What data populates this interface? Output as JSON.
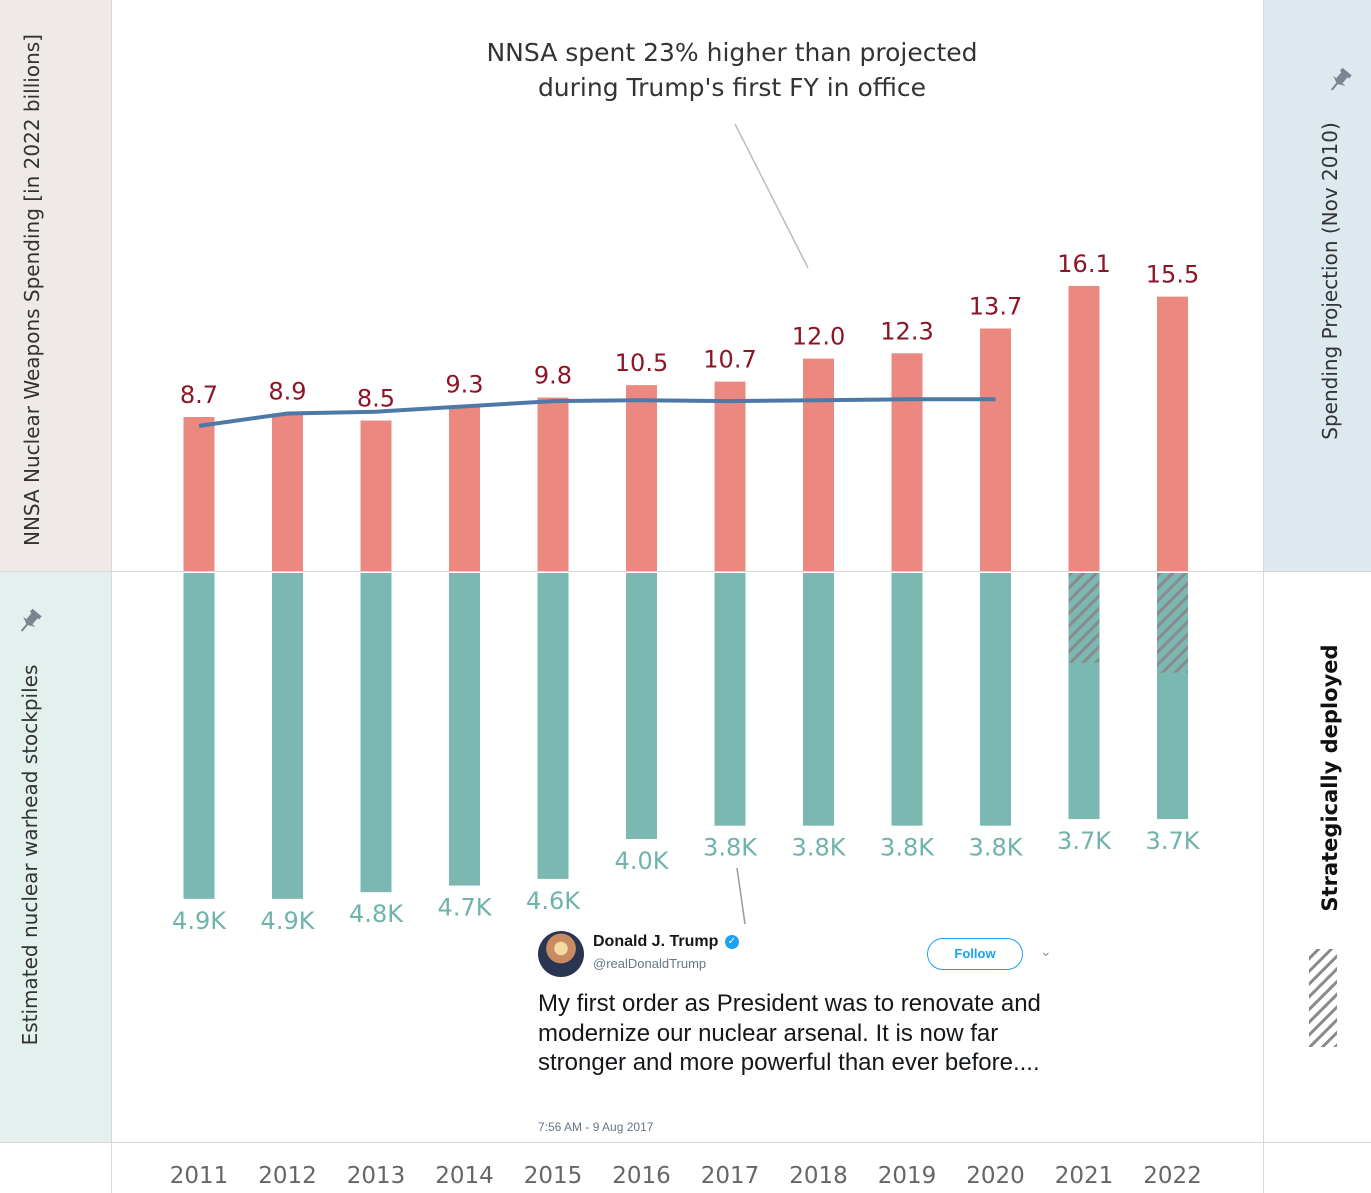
{
  "chart_data": {
    "type": "bar",
    "categories": [
      "2011",
      "2012",
      "2013",
      "2014",
      "2015",
      "2016",
      "2017",
      "2018",
      "2019",
      "2020",
      "2021",
      "2022"
    ],
    "top_panel": {
      "axis_label": "NNSA Nuclear Weapons Spending [in 2022 billions]",
      "spending": [
        8.7,
        8.9,
        8.5,
        9.3,
        9.8,
        10.5,
        10.7,
        12.0,
        12.3,
        13.7,
        16.1,
        15.5
      ],
      "spending_labels": [
        "8.7",
        "8.9",
        "8.5",
        "9.3",
        "9.8",
        "10.5",
        "10.7",
        "12.0",
        "12.3",
        "13.7",
        "16.1",
        "15.5"
      ],
      "projection_label": "Spending Projection (Nov 2010)",
      "projection": [
        8.2,
        8.9,
        9.0,
        9.3,
        9.6,
        9.65,
        9.6,
        9.65,
        9.7,
        9.7
      ],
      "annotation": "NNSA spent 23% higher than projected during Trump's first FY in office",
      "annotation_lines": [
        "NNSA spent 23% higher than projected",
        "during Trump's first FY in office"
      ]
    },
    "bottom_panel": {
      "axis_label": "Estimated nuclear warhead stockpiles",
      "stockpile_thousands": [
        4.9,
        4.9,
        4.8,
        4.7,
        4.6,
        4.0,
        3.8,
        3.8,
        3.8,
        3.8,
        3.7,
        3.7
      ],
      "stockpile_labels": [
        "4.9K",
        "4.9K",
        "4.8K",
        "4.7K",
        "4.6K",
        "4.0K",
        "3.8K",
        "3.8K",
        "3.8K",
        "3.8K",
        "3.7K",
        "3.7K"
      ],
      "strategically_deployed_thousands": [
        null,
        null,
        null,
        null,
        null,
        null,
        null,
        null,
        null,
        null,
        1.35,
        1.5
      ],
      "legend_label": "Strategically deployed"
    },
    "colors": {
      "spending_bar": "#eb8880",
      "spending_label": "#8c1526",
      "projection_line": "#4e79a7",
      "stockpile_bar": "#7ab8b1",
      "stockpile_label": "#6fb3ad",
      "hatch": "#8a8a8a",
      "axis_text": "#666666"
    }
  },
  "tweet": {
    "name": "Donald J. Trump",
    "handle": "@realDonaldTrump",
    "follow_label": "Follow",
    "text": "My first order as President was to renovate and modernize our nuclear arsenal. It is now far stronger and more powerful than ever before....",
    "timestamp": "7:56 AM - 9 Aug 2017",
    "verified_icon": "verified-badge-icon",
    "caret_icon": "chevron-down-icon"
  },
  "icons": {
    "pin": "pin-icon"
  }
}
